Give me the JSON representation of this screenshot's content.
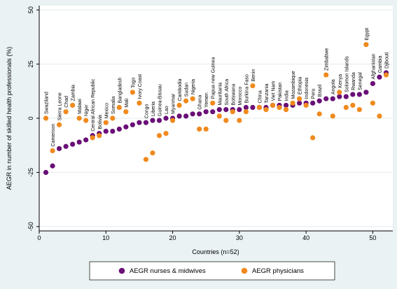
{
  "colors": {
    "nurses": "#6a0f77",
    "physicians": "#f08a1e",
    "plot_bg": "#ffffff",
    "page_bg": "#eaf2f3",
    "grid": "#e3ecef"
  },
  "chart_data": {
    "type": "scatter",
    "xlabel": "Countries (n=52)",
    "ylabel": "AEGR in number of skilled health professionals (%)",
    "xlim": [
      0,
      53
    ],
    "ylim": [
      -52,
      52
    ],
    "x_ticks": [
      0,
      10,
      20,
      30,
      40,
      50
    ],
    "y_ticks": [
      -50,
      -25,
      0,
      25,
      50
    ],
    "grid": true,
    "legend_position": "bottom",
    "series": [
      {
        "name": "AEGR nurses & midwives",
        "marker": "circle",
        "color": "#6a0f77",
        "x": [
          1,
          2,
          3,
          4,
          5,
          6,
          7,
          8,
          9,
          10,
          11,
          12,
          13,
          14,
          15,
          16,
          17,
          18,
          19,
          20,
          21,
          22,
          23,
          24,
          25,
          26,
          27,
          28,
          29,
          30,
          31,
          32,
          33,
          34,
          35,
          36,
          37,
          38,
          39,
          40,
          41,
          42,
          43,
          44,
          45,
          46,
          47,
          48,
          49,
          50,
          51,
          52
        ],
        "y": [
          -25,
          -22,
          -14,
          -13,
          -12,
          -11,
          -10,
          -8,
          -7,
          -6,
          -6,
          -5,
          -4,
          -3,
          -2,
          -2,
          -1,
          -1,
          0,
          0,
          1,
          1,
          2,
          2,
          3,
          3,
          4,
          4,
          4,
          4,
          5,
          5,
          5,
          5,
          6,
          6,
          6,
          6,
          7,
          7,
          7,
          8,
          9,
          9,
          10,
          10,
          11,
          11,
          12,
          16,
          19,
          21
        ]
      },
      {
        "name": "AEGR physicians",
        "marker": "circle",
        "color": "#f08a1e",
        "x": [
          1,
          2,
          3,
          4,
          5,
          6,
          7,
          8,
          9,
          10,
          11,
          12,
          13,
          14,
          15,
          16,
          17,
          18,
          19,
          20,
          21,
          22,
          23,
          24,
          25,
          26,
          27,
          28,
          29,
          30,
          31,
          32,
          33,
          34,
          35,
          36,
          37,
          38,
          39,
          40,
          41,
          42,
          43,
          44,
          45,
          46,
          47,
          48,
          49,
          50,
          51,
          52
        ],
        "y": [
          0,
          -15,
          -3,
          3,
          6,
          0,
          -1,
          -9,
          -8,
          -2,
          0,
          5,
          3,
          12,
          7,
          -19,
          -16,
          -8,
          -7,
          -1,
          6,
          8,
          9,
          -5,
          -5,
          7,
          1,
          -1,
          3,
          -1,
          3,
          15,
          5,
          4,
          6,
          5,
          4,
          7,
          9,
          6,
          -9,
          2,
          20,
          1,
          12,
          5,
          6,
          4,
          34,
          7,
          1,
          20
        ]
      }
    ],
    "annotations": [
      {
        "x": 1,
        "text": "Swaziland"
      },
      {
        "x": 2,
        "text": "Cameroon"
      },
      {
        "x": 3,
        "text": "Sierra Leone"
      },
      {
        "x": 4,
        "text": "Chad"
      },
      {
        "x": 5,
        "text": "Zambia"
      },
      {
        "x": 6,
        "text": "Malawi"
      },
      {
        "x": 7,
        "text": "Niger"
      },
      {
        "x": 8,
        "text": "Central African Republic"
      },
      {
        "x": 9,
        "text": "Bolivia"
      },
      {
        "x": 10,
        "text": "Mexico"
      },
      {
        "x": 11,
        "text": "Somalia"
      },
      {
        "x": 12,
        "text": "Bangladesh"
      },
      {
        "x": 13,
        "text": "Mali"
      },
      {
        "x": 14,
        "text": "Togo"
      },
      {
        "x": 15,
        "text": "Ivory Coast"
      },
      {
        "x": 16,
        "text": "Congo"
      },
      {
        "x": 17,
        "text": "Liberia"
      },
      {
        "x": 18,
        "text": "Guinea-Bissau"
      },
      {
        "x": 19,
        "text": "Lao"
      },
      {
        "x": 20,
        "text": "Myanmar"
      },
      {
        "x": 21,
        "text": "Cambodia"
      },
      {
        "x": 22,
        "text": "Sudan"
      },
      {
        "x": 23,
        "text": "Nigeria"
      },
      {
        "x": 24,
        "text": "Ghana"
      },
      {
        "x": 25,
        "text": "Yemen"
      },
      {
        "x": 26,
        "text": "Papua new Guinea"
      },
      {
        "x": 27,
        "text": "Mauritania"
      },
      {
        "x": 28,
        "text": "South Africa"
      },
      {
        "x": 29,
        "text": "Botswana"
      },
      {
        "x": 30,
        "text": "Morocco"
      },
      {
        "x": 31,
        "text": "Burkina Faso"
      },
      {
        "x": 32,
        "text": "Benin"
      },
      {
        "x": 33,
        "text": "China"
      },
      {
        "x": 34,
        "text": "Tanzania"
      },
      {
        "x": 35,
        "text": "Viet Nam"
      },
      {
        "x": 36,
        "text": "Pakistan"
      },
      {
        "x": 37,
        "text": "India"
      },
      {
        "x": 38,
        "text": "Mozambique"
      },
      {
        "x": 39,
        "text": "Ethiopia"
      },
      {
        "x": 40,
        "text": "Indonesia"
      },
      {
        "x": 41,
        "text": "Peru"
      },
      {
        "x": 42,
        "text": "Brazil"
      },
      {
        "x": 43,
        "text": "Zimbabwe"
      },
      {
        "x": 44,
        "text": "Angola"
      },
      {
        "x": 45,
        "text": "Kenya"
      },
      {
        "x": 46,
        "text": "Solomon Islands"
      },
      {
        "x": 47,
        "text": "Rwanda"
      },
      {
        "x": 48,
        "text": "Senegal"
      },
      {
        "x": 49,
        "text": "Egypt"
      },
      {
        "x": 50,
        "text": "Afghanistan"
      },
      {
        "x": 51,
        "text": "Gambia"
      },
      {
        "x": 52,
        "text": "Djibouti"
      }
    ]
  }
}
